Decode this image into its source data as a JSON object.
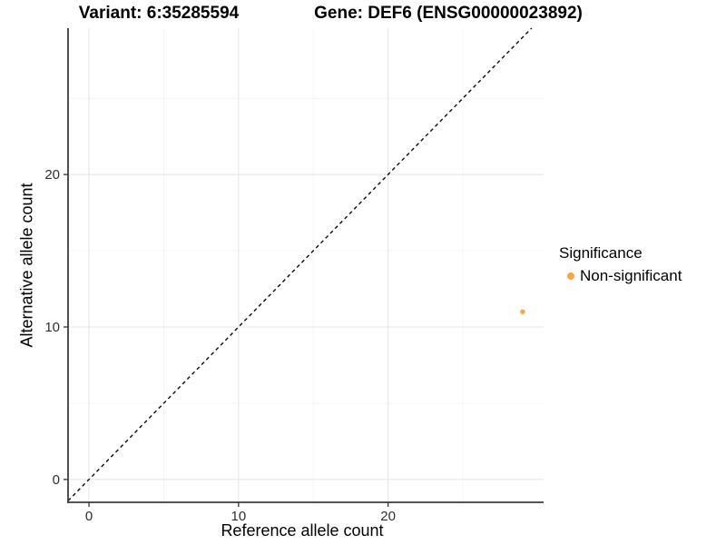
{
  "titles": {
    "variant": "Variant: 6:35285594",
    "gene": "Gene: DEF6 (ENSG00000023892)"
  },
  "chart_data": {
    "type": "scatter",
    "xlabel": "Reference allele count",
    "ylabel": "Alternative allele count",
    "xlim": [
      -1.4,
      30.4
    ],
    "ylim": [
      -1.5,
      29.6
    ],
    "xticks": [
      0,
      10,
      20
    ],
    "yticks": [
      0,
      10,
      20
    ],
    "minor_ticks_x": [
      5,
      15,
      25
    ],
    "minor_ticks_y": [
      5,
      15,
      25
    ],
    "grid": true,
    "series": [
      {
        "name": "Non-significant",
        "color": "#F9A63E",
        "points": [
          {
            "x": 29,
            "y": 11
          }
        ]
      }
    ],
    "reference_line": {
      "kind": "identity",
      "slope": 1,
      "intercept": 0,
      "style": "dashed",
      "color": "#0a0a0a"
    },
    "legend": {
      "title": "Significance",
      "position": "right",
      "entries": [
        {
          "label": "Non-significant",
          "color": "#F9A63E"
        }
      ]
    },
    "colors": {
      "axis_line": "#3d3d3d",
      "tick_mark": "#333333",
      "tick_label": "#303030",
      "grid_major": "#e9e9e9",
      "grid_minor": "#f4f4f4",
      "background": "#ffffff"
    }
  }
}
